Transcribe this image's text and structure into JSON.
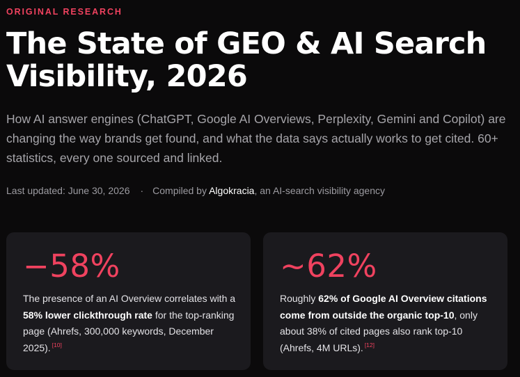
{
  "header": {
    "eyebrow": "ORIGINAL RESEARCH",
    "title": "The State of GEO & AI Search Visibility, 2026",
    "subtitle": "How AI answer engines (ChatGPT, Google AI Overviews, Perplexity, Gemini and Copilot) are changing the way brands get found, and what the data says actually works to get cited. 60+ statistics, every one sourced and linked."
  },
  "meta": {
    "updated": "Last updated: June 30, 2026",
    "separator": "·",
    "compiled_prefix": "Compiled by ",
    "compiled_brand": "Algokracia",
    "compiled_suffix": ", an AI-search visibility agency"
  },
  "colors": {
    "accent": "#f0425f",
    "background": "#0b0a0b",
    "card": "#1b1a1e"
  },
  "cards": [
    {
      "stat": "−58%",
      "text_1": "The presence of an AI Overview correlates with a ",
      "strong": "58% lower clickthrough rate",
      "text_2": " for the top-ranking page (Ahrefs, 300,000 keywords, December 2025).",
      "ref": "[10]"
    },
    {
      "stat": "~62%",
      "text_1": "Roughly ",
      "strong": "62% of Google AI Overview citations come from outside the organic top-10",
      "text_2": ", only about 38% of cited pages also rank top-10 (Ahrefs, 4M URLs).",
      "ref": "[12]"
    }
  ]
}
